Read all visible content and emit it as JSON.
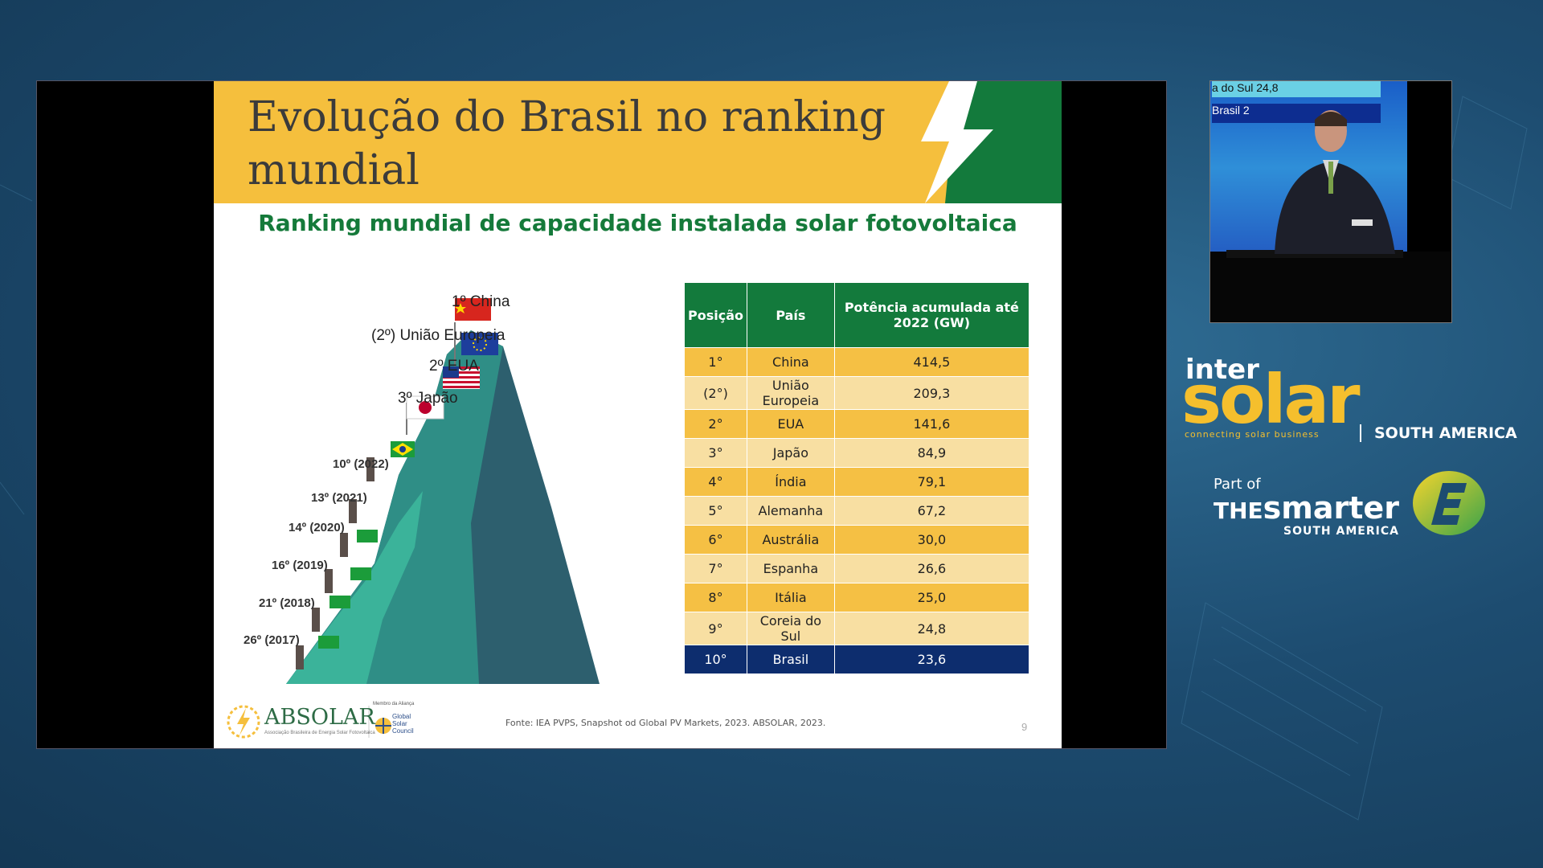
{
  "slide": {
    "title": "Evolução do Brasil no ranking mundial",
    "subtitle": "Ranking mundial de capacidade instalada solar fotovoltaica",
    "mountain_labels": [
      "1º China",
      "(2º) União Europeia",
      "2º EUA",
      "3º Japão",
      "10º (2022)",
      "13º (2021)",
      "14º (2020)",
      "16º (2019)",
      "21º (2018)",
      "26º (2017)"
    ],
    "table": {
      "headers": [
        "Posição",
        "País",
        "Potência acumulada até 2022 (GW)"
      ],
      "rows": [
        [
          "1°",
          "China",
          "414,5"
        ],
        [
          "(2°)",
          "União Europeia",
          "209,3"
        ],
        [
          "2°",
          "EUA",
          "141,6"
        ],
        [
          "3°",
          "Japão",
          "84,9"
        ],
        [
          "4°",
          "Índia",
          "79,1"
        ],
        [
          "5°",
          "Alemanha",
          "67,2"
        ],
        [
          "6°",
          "Austrália",
          "30,0"
        ],
        [
          "7°",
          "Espanha",
          "26,6"
        ],
        [
          "8°",
          "Itália",
          "25,0"
        ],
        [
          "9°",
          "Coreia do Sul",
          "24,8"
        ],
        [
          "10°",
          "Brasil",
          "23,6"
        ]
      ],
      "highlight_color": "#0d2d6e",
      "header_color": "#137a3c"
    },
    "source": "Fonte: IEA PVPS, Snapshot od Global PV Markets, 2023. ABSOLAR, 2023.",
    "page_number": "9",
    "logo": {
      "absolar": "ABSOLAR",
      "absolar_sub": "Associação Brasileira de Energia Solar Fotovoltaica",
      "gsc_top": "Membro da Aliança",
      "gsc": "Global Solar Council"
    }
  },
  "camera": {
    "screen_line1": "a do Sul          24,8",
    "screen_line2": "Brasil           2"
  },
  "branding": {
    "inter": "inter",
    "solar": "solar",
    "tagline": "connecting solar business",
    "region": "SOUTH AMERICA",
    "part_of": "Part of",
    "the": "THE",
    "smarter": "smarter",
    "smarter_region": "SOUTH AMERICA",
    "accent_yellow": "#f5bf2d"
  }
}
